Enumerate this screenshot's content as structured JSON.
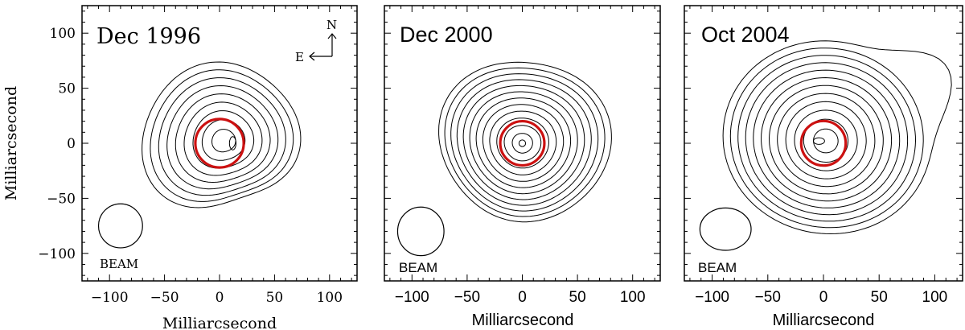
{
  "chart_data": [
    {
      "type": "contour",
      "title": "Dec 1996",
      "xlabel": "Milliarcsecond",
      "ylabel": "Milliarcsecond",
      "xlim": [
        -125,
        125
      ],
      "ylim": [
        -125,
        125
      ],
      "x_ticks": [
        "−100",
        "−50",
        "0",
        "50",
        "100"
      ],
      "y_ticks": [
        "100",
        "50",
        "0",
        "−50",
        "−100"
      ],
      "beam_label": "BEAM",
      "beam": {
        "center": [
          -90,
          -75
        ],
        "radius_x": 20,
        "radius_y": 20
      },
      "compass": {
        "north": "N",
        "east": "E"
      },
      "red_ring": {
        "center": [
          0,
          0
        ],
        "radius": 22
      },
      "contour_center": [
        4,
        2
      ],
      "contour_count": 9,
      "contour_outer_radius_mas": 68,
      "peak": {
        "center": [
          12,
          0
        ],
        "size": [
          3,
          6
        ]
      }
    },
    {
      "type": "contour",
      "title": "Dec 2000",
      "xlabel": "Milliarcsecond",
      "ylabel": "",
      "xlim": [
        -125,
        125
      ],
      "ylim": [
        -125,
        125
      ],
      "x_ticks": [
        "−100",
        "−50",
        "0",
        "50",
        "100"
      ],
      "y_ticks": [],
      "beam_label": "BEAM",
      "beam": {
        "center": [
          -92,
          -80
        ],
        "radius_x": 21,
        "radius_y": 22
      },
      "red_ring": {
        "center": [
          0,
          0
        ],
        "radius": 20
      },
      "contour_center": [
        0,
        0
      ],
      "contour_count": 12,
      "contour_outer_radius_mas": 75,
      "peak": {
        "center": [
          0,
          0
        ],
        "size": [
          3,
          3
        ]
      }
    },
    {
      "type": "contour",
      "title": "Oct 2004",
      "xlabel": "Milliarcsecond",
      "ylabel": "",
      "xlim": [
        -125,
        125
      ],
      "ylim": [
        -125,
        125
      ],
      "x_ticks": [
        "−100",
        "−50",
        "0",
        "50",
        "100"
      ],
      "y_ticks": [],
      "beam_label": "BEAM",
      "beam": {
        "center": [
          -88,
          -78
        ],
        "radius_x": 23,
        "radius_y": 19
      },
      "red_ring": {
        "center": [
          0,
          0
        ],
        "radius": 20
      },
      "contour_center": [
        2,
        2
      ],
      "contour_count": 12,
      "contour_outer_radius_mas": 90,
      "peak": {
        "center": [
          -4,
          2
        ],
        "size": [
          5,
          3
        ]
      }
    }
  ],
  "colors": {
    "contour": "#000000",
    "ring": "#cc1111",
    "frame": "#000000"
  }
}
